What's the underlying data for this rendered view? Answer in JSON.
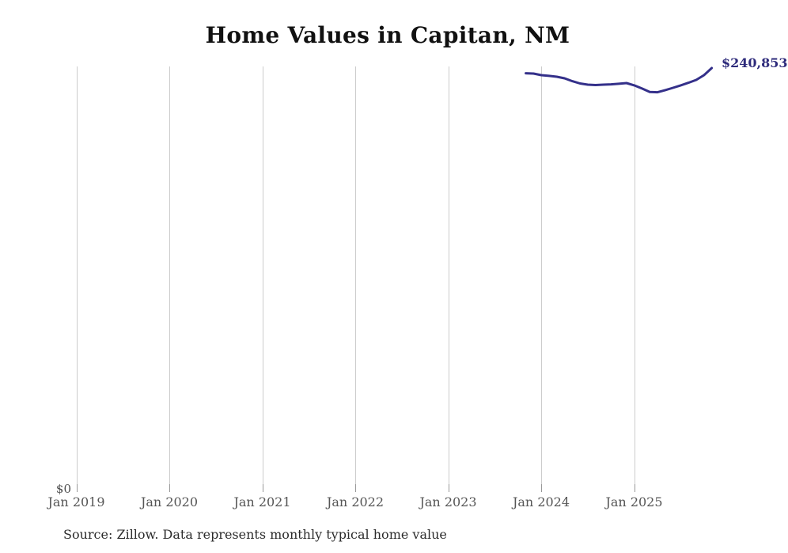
{
  "title": "Home Values in Capitan, NM",
  "source_note": "Source: Zillow. Data represents monthly typical home value",
  "y_axis": {
    "zero_label": "$0"
  },
  "end_label": "$240,853",
  "x_axis": {
    "ticks": [
      "Jan 2019",
      "Jan 2020",
      "Jan 2021",
      "Jan 2022",
      "Jan 2023",
      "Jan 2024",
      "Jan 2025"
    ]
  },
  "colors": {
    "line": "#34308a",
    "end_label": "#2e2b7b",
    "grid": "#cccccc",
    "tick": "#999999",
    "axis_text": "#555555",
    "title_text": "#111111",
    "source_text": "#2b2b2b",
    "background": "#ffffff"
  },
  "chart_data": {
    "type": "line",
    "title": "Home Values in Capitan, NM",
    "series_name": "Monthly typical home value",
    "x": [
      "Nov 2023",
      "Dec 2023",
      "Jan 2024",
      "Feb 2024",
      "Mar 2024",
      "Apr 2024",
      "May 2024",
      "Jun 2024",
      "Jul 2024",
      "Aug 2024",
      "Sep 2024",
      "Oct 2024",
      "Nov 2024",
      "Dec 2024",
      "Jan 2025",
      "Feb 2025",
      "Mar 2025",
      "Apr 2025",
      "May 2025",
      "Jun 2025",
      "Jul 2025",
      "Aug 2025",
      "Sep 2025",
      "Oct 2025",
      "Nov 2025"
    ],
    "values": [
      237900,
      237700,
      236800,
      236400,
      235900,
      235000,
      233400,
      232100,
      231400,
      231200,
      231400,
      231600,
      231900,
      232300,
      231000,
      229200,
      227300,
      227100,
      228300,
      229600,
      231000,
      232500,
      234100,
      236800,
      240853
    ],
    "end_label": "$240,853",
    "xlabel": "",
    "ylabel": "",
    "ylim": [
      0,
      250000
    ],
    "x_tick_labels": [
      "Jan 2019",
      "Jan 2020",
      "Jan 2021",
      "Jan 2022",
      "Jan 2023",
      "Jan 2024",
      "Jan 2025"
    ],
    "grid": "vertical",
    "legend": "none"
  }
}
